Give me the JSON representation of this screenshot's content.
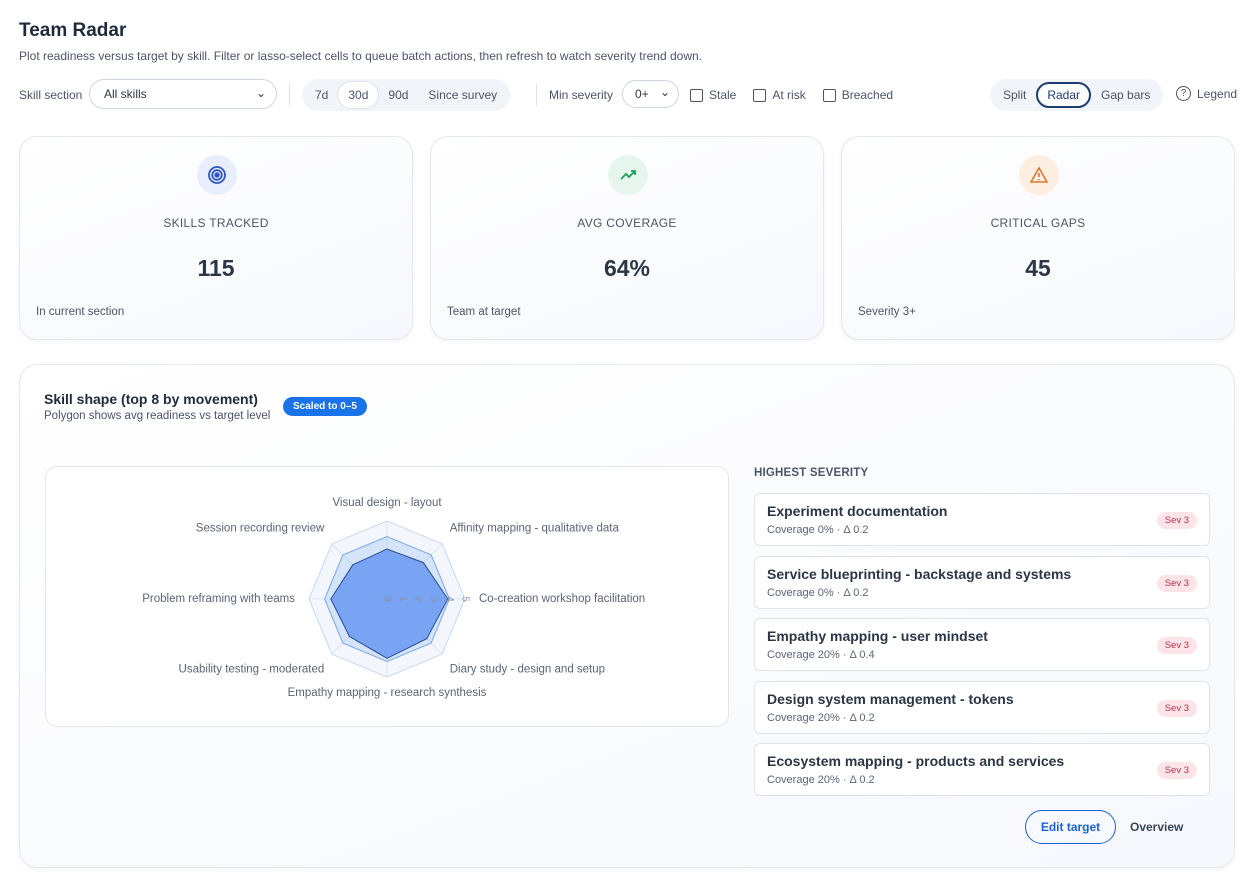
{
  "header": {
    "title": "Team Radar",
    "subtitle": "Plot readiness versus target by skill. Filter or lasso-select cells to queue batch actions, then refresh to watch severity trend down."
  },
  "toolbar": {
    "skill_section_label": "Skill section",
    "skill_section_value": "All skills",
    "ranges": [
      "7d",
      "30d",
      "90d",
      "Since survey"
    ],
    "active_range": "30d",
    "min_severity_label": "Min severity",
    "min_severity_value": "0+",
    "filters": [
      "Stale",
      "At risk",
      "Breached"
    ],
    "views": [
      "Split",
      "Radar",
      "Gap bars"
    ],
    "active_view": "Radar",
    "legend": "Legend"
  },
  "kpis": [
    {
      "label": "SKILLS TRACKED",
      "value": "115",
      "note": "In current section",
      "color": "#2f55c8",
      "bg": "#e8eefc"
    },
    {
      "label": "AVG COVERAGE",
      "value": "64%",
      "note": "Team at target",
      "color": "#1f9d5b",
      "bg": "#e6f6ee"
    },
    {
      "label": "CRITICAL GAPS",
      "value": "45",
      "note": "Severity 3+",
      "color": "#e0762d",
      "bg": "#fdeee2"
    }
  ],
  "panel": {
    "title": "Skill shape (top 8 by movement)",
    "subtitle": "Polygon shows avg readiness vs target level",
    "badge": "Scaled to 0–5"
  },
  "chart_data": {
    "type": "radar",
    "categories": [
      "Visual design - layout",
      "Affinity mapping - qualitative data",
      "Co-creation workshop facilitation",
      "Diary study - design and setup",
      "Empathy mapping - research synthesis",
      "Usability testing - moderated",
      "Problem reframing with teams",
      "Session recording review"
    ],
    "series": [
      {
        "color": "#9cc0f5",
        "values": [
          4,
          4,
          4,
          4,
          4,
          4,
          4,
          4
        ]
      },
      {
        "color": "#5b8ef0",
        "values": [
          3.2,
          3.3,
          3.9,
          3.6,
          3.8,
          3.4,
          3.6,
          3.1
        ]
      }
    ],
    "ylim": [
      0,
      5
    ],
    "yticks": [
      0,
      1,
      2,
      3,
      4,
      5
    ],
    "grid": true
  },
  "severity": {
    "heading": "HIGHEST SEVERITY",
    "items": [
      {
        "title": "Experiment documentation",
        "meta": "Coverage 0% · Δ 0.2",
        "badge": "Sev 3"
      },
      {
        "title": "Service blueprinting - backstage and systems",
        "meta": "Coverage 0% · Δ 0.2",
        "badge": "Sev 3"
      },
      {
        "title": "Empathy mapping - user mindset",
        "meta": "Coverage 20% · Δ 0.4",
        "badge": "Sev 3"
      },
      {
        "title": "Design system management - tokens",
        "meta": "Coverage 20% · Δ 0.2",
        "badge": "Sev 3"
      },
      {
        "title": "Ecosystem mapping - products and services",
        "meta": "Coverage 20% · Δ 0.2",
        "badge": "Sev 3"
      }
    ]
  },
  "actions": [
    "Edit target",
    "Overview"
  ]
}
